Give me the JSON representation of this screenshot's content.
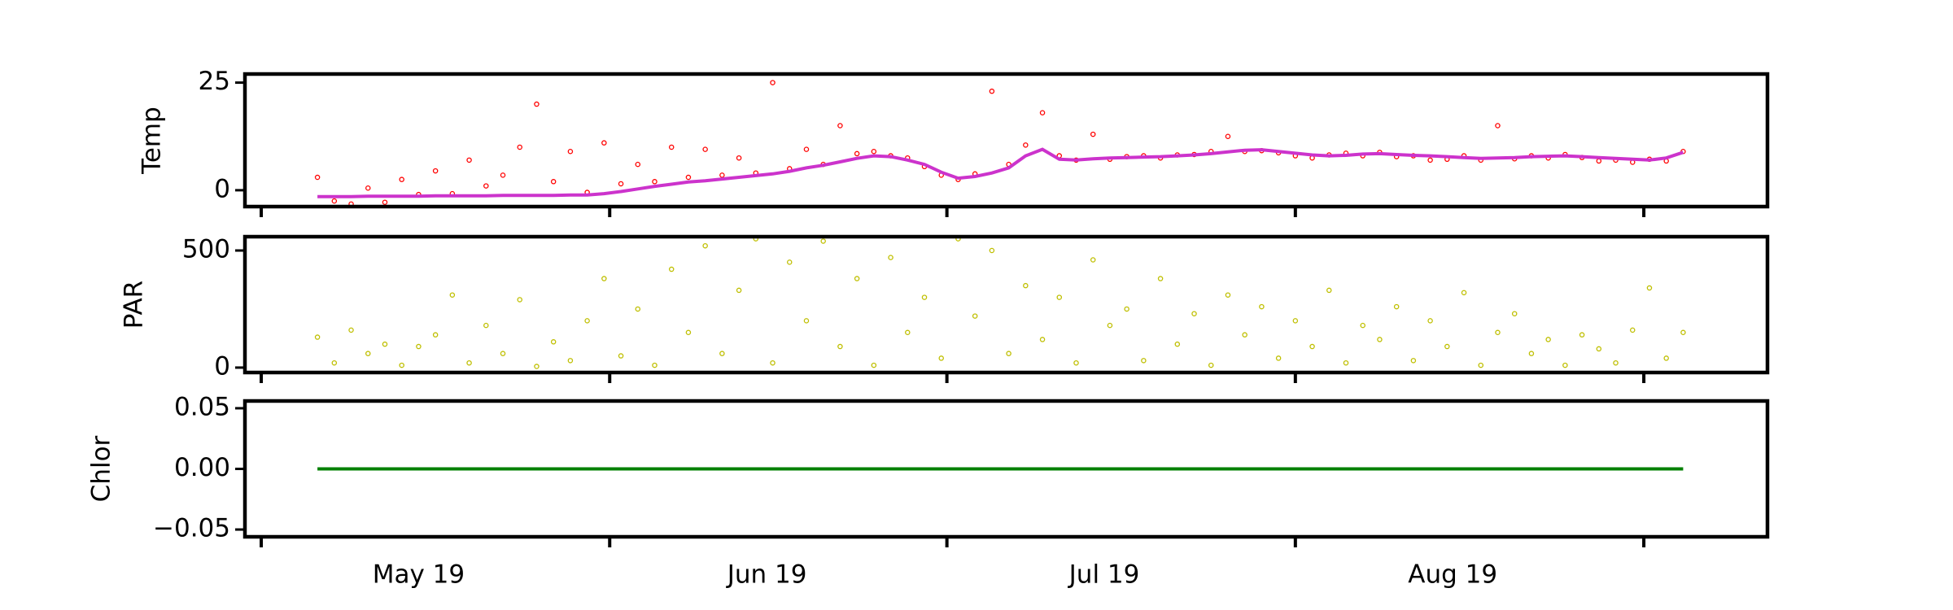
{
  "chart_data": {
    "type": "scatter",
    "x": [
      5,
      6.5,
      8,
      9.5,
      11,
      12.5,
      14,
      15.5,
      17,
      18.5,
      20,
      21.5,
      23,
      24.5,
      26,
      27.5,
      29,
      30.5,
      32,
      33.5,
      35,
      36.5,
      38,
      39.5,
      41,
      42.5,
      44,
      45.5,
      47,
      48.5,
      50,
      51.5,
      53,
      54.5,
      56,
      57.5,
      59,
      60.5,
      62,
      63.5,
      65,
      66.5,
      68,
      69.5,
      71,
      72.5,
      74,
      75.5,
      77,
      78.5,
      80,
      81.5,
      83,
      84.5,
      86,
      87.5,
      89,
      90.5,
      92,
      93.5,
      95,
      96.5,
      98,
      99.5,
      101,
      102.5,
      104,
      105.5,
      107,
      108.5,
      110,
      111.5,
      113,
      114.5,
      116,
      117.5,
      119,
      120.5,
      122,
      123.5,
      125,
      126.5
    ],
    "xlim": [
      -1.45,
      134
    ],
    "xticks": [
      {
        "value": 14,
        "label": "May 19"
      },
      {
        "value": 45,
        "label": "Jun 19"
      },
      {
        "value": 75,
        "label": "Jul 19"
      },
      {
        "value": 106,
        "label": "Aug 19"
      }
    ],
    "xticks_major": [
      0,
      31,
      61,
      92,
      123
    ],
    "panels": [
      {
        "ylabel": "Temp",
        "ylim": [
          -3.8,
          27
        ],
        "yticks": [
          0,
          25
        ],
        "series": [
          {
            "color": "#ff0000",
            "line": false,
            "values": [
              3.0,
              -2.5,
              -3.2,
              0.5,
              -2.8,
              2.5,
              -1.0,
              4.5,
              -0.8,
              7.0,
              1.0,
              3.5,
              10.0,
              20.0,
              2.0,
              9.0,
              -0.5,
              11.0,
              1.5,
              6.0,
              2.0,
              10.0,
              3.0,
              9.5,
              3.5,
              7.5,
              4.0,
              25.0,
              5.0,
              9.5,
              6.0,
              15.0,
              8.5,
              9.0,
              8.0,
              7.5,
              5.5,
              3.5,
              2.5,
              3.8,
              23.0,
              6.0,
              10.5,
              18.0,
              8.0,
              7.0,
              13.0,
              7.2,
              7.8,
              8.0,
              7.5,
              8.2,
              8.3,
              9.0,
              12.5,
              9.0,
              9.2,
              8.7,
              8.0,
              7.5,
              8.2,
              8.6,
              8.0,
              8.8,
              7.8,
              8.0,
              7.0,
              7.2,
              8.0,
              7.0,
              15.0,
              7.3,
              8.0,
              7.5,
              8.3,
              7.6,
              6.8,
              7.0,
              6.5,
              7.2,
              6.8,
              9.0
            ]
          },
          {
            "color": "#cc33cc",
            "line": true,
            "values": [
              -1.5,
              -1.5,
              -1.5,
              -1.4,
              -1.4,
              -1.4,
              -1.4,
              -1.3,
              -1.3,
              -1.3,
              -1.3,
              -1.2,
              -1.2,
              -1.2,
              -1.2,
              -1.1,
              -1.1,
              -0.8,
              -0.3,
              0.3,
              0.9,
              1.4,
              1.9,
              2.2,
              2.6,
              3.0,
              3.4,
              3.8,
              4.4,
              5.2,
              5.8,
              6.6,
              7.4,
              8.0,
              7.8,
              7.0,
              6.0,
              4.2,
              2.8,
              3.2,
              4.0,
              5.2,
              8.0,
              9.5,
              7.2,
              7.0,
              7.3,
              7.5,
              7.6,
              7.7,
              7.8,
              8.0,
              8.2,
              8.5,
              8.9,
              9.3,
              9.4,
              9.0,
              8.6,
              8.2,
              8.0,
              8.1,
              8.4,
              8.5,
              8.3,
              8.1,
              8.0,
              7.8,
              7.6,
              7.4,
              7.5,
              7.6,
              7.8,
              7.9,
              8.0,
              7.8,
              7.6,
              7.4,
              7.2,
              7.0,
              7.5,
              8.8
            ]
          }
        ]
      },
      {
        "ylabel": "PAR",
        "ylim": [
          -21,
          559
        ],
        "yticks": [
          0,
          500
        ],
        "series": [
          {
            "color": "#bfbf00",
            "line": false,
            "values": [
              130,
              20,
              160,
              60,
              100,
              10,
              90,
              140,
              310,
              20,
              180,
              60,
              290,
              5,
              110,
              30,
              200,
              380,
              50,
              250,
              10,
              420,
              150,
              520,
              60,
              330,
              550,
              20,
              450,
              200,
              540,
              90,
              380,
              10,
              470,
              150,
              300,
              40,
              550,
              220,
              500,
              60,
              350,
              120,
              300,
              20,
              460,
              180,
              250,
              30,
              380,
              100,
              230,
              10,
              310,
              140,
              260,
              40,
              200,
              90,
              330,
              20,
              180,
              120,
              260,
              30,
              200,
              90,
              320,
              10,
              150,
              230,
              60,
              120,
              10,
              140,
              80,
              20,
              160,
              340,
              40,
              150
            ]
          }
        ]
      },
      {
        "ylabel": "Chlor",
        "ylim": [
          -0.056,
          0.056
        ],
        "yticks": [
          {
            "value": -0.05,
            "label": "−0.05"
          },
          {
            "value": 0,
            "label": "0.00"
          },
          {
            "value": 0.05,
            "label": "0.05"
          }
        ],
        "series": [
          {
            "color": "#008000",
            "line": true,
            "values": [
              0,
              0,
              0,
              0,
              0,
              0,
              0,
              0,
              0,
              0,
              0,
              0,
              0,
              0,
              0,
              0,
              0,
              0,
              0,
              0,
              0,
              0,
              0,
              0,
              0,
              0,
              0,
              0,
              0,
              0,
              0,
              0,
              0,
              0,
              0,
              0,
              0,
              0,
              0,
              0,
              0,
              0,
              0,
              0,
              0,
              0,
              0,
              0,
              0,
              0,
              0,
              0,
              0,
              0,
              0,
              0,
              0,
              0,
              0,
              0,
              0,
              0,
              0,
              0,
              0,
              0,
              0,
              0,
              0,
              0,
              0,
              0,
              0,
              0,
              0,
              0,
              0,
              0,
              0,
              0,
              0,
              0
            ]
          }
        ]
      }
    ]
  }
}
